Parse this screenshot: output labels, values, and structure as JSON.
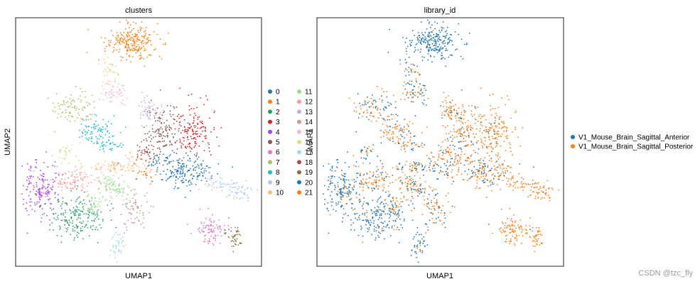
{
  "chart_data": [
    {
      "type": "scatter",
      "title": "clusters",
      "xlabel": "UMAP1",
      "ylabel": "UMAP2",
      "grid": false,
      "legend_placement": "right",
      "legend": {
        "col1": [
          {
            "label": "0",
            "color": "#1f77b4"
          },
          {
            "label": "1",
            "color": "#ff7f0e"
          },
          {
            "label": "2",
            "color": "#279e68"
          },
          {
            "label": "3",
            "color": "#d62728"
          },
          {
            "label": "4",
            "color": "#aa40fc"
          },
          {
            "label": "5",
            "color": "#8c564b"
          },
          {
            "label": "6",
            "color": "#e377c2"
          },
          {
            "label": "7",
            "color": "#b5bd61"
          },
          {
            "label": "8",
            "color": "#17becf"
          },
          {
            "label": "9",
            "color": "#aec7e8"
          },
          {
            "label": "10",
            "color": "#ffbb78"
          }
        ],
        "col2": [
          {
            "label": "11",
            "color": "#98df8a"
          },
          {
            "label": "12",
            "color": "#ff9896"
          },
          {
            "label": "13",
            "color": "#c5b0d5"
          },
          {
            "label": "14",
            "color": "#c49c94"
          },
          {
            "label": "15",
            "color": "#f7b6d2"
          },
          {
            "label": "16",
            "color": "#dbdb8d"
          },
          {
            "label": "17",
            "color": "#9edae5"
          },
          {
            "label": "18",
            "color": "#ad494a"
          },
          {
            "label": "19",
            "color": "#8c6d31"
          },
          {
            "label": "20",
            "color": "#1f77b4"
          },
          {
            "label": "21",
            "color": "#ff7f0e"
          }
        ]
      },
      "overlap_text": "UMAP1"
    },
    {
      "type": "scatter",
      "title": "library_id",
      "xlabel": "UMAP1",
      "ylabel": "",
      "grid": false,
      "legend_placement": "right",
      "legend": [
        {
          "label": "V1_Mouse_Brain_Sagittal_Anterior",
          "color": "#1f77b4"
        },
        {
          "label": "V1_Mouse_Brain_Sagittal_Posterior",
          "color": "#ff7f0e"
        }
      ]
    }
  ],
  "watermark": "CSDN @tzc_fly"
}
